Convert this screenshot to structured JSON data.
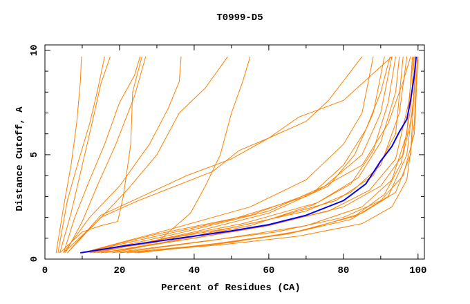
{
  "chart_data": {
    "type": "line",
    "title": "T0999-D5",
    "xlabel": "Percent of Residues (CA)",
    "ylabel": "Distance Cutoff, A",
    "xlim": [
      0,
      101.7
    ],
    "ylim": [
      0,
      10.26
    ],
    "xticks": [
      0,
      20,
      40,
      60,
      80,
      100
    ],
    "yticks": [
      0,
      5,
      10
    ],
    "xminor_step": 10,
    "yminor_step": 1,
    "grid": false,
    "colors": {
      "models": "#ff8000",
      "highlight": "#0000ff",
      "axis": "#000000"
    },
    "highlight_series": [
      [
        9.5,
        0.3
      ],
      [
        20,
        0.6
      ],
      [
        30,
        0.85
      ],
      [
        40,
        1.1
      ],
      [
        50,
        1.35
      ],
      [
        60,
        1.65
      ],
      [
        70,
        2.1
      ],
      [
        80,
        2.8
      ],
      [
        86,
        3.6
      ],
      [
        90,
        4.7
      ],
      [
        93,
        5.4
      ],
      [
        95,
        6.1
      ],
      [
        97,
        6.7
      ],
      [
        98,
        7.6
      ],
      [
        99,
        8.8
      ],
      [
        99.5,
        9.7
      ]
    ],
    "series": [
      [
        [
          3,
          0.3
        ],
        [
          5,
          2.5
        ],
        [
          7,
          4.5
        ],
        [
          8.5,
          6.5
        ],
        [
          9.5,
          8.5
        ],
        [
          9.8,
          9.7
        ]
      ],
      [
        [
          3.5,
          0.3
        ],
        [
          6,
          2.8
        ],
        [
          9,
          4.7
        ],
        [
          12,
          6.5
        ],
        [
          14,
          8
        ],
        [
          16,
          9.7
        ]
      ],
      [
        [
          4,
          0.3
        ],
        [
          7,
          2.2
        ],
        [
          10,
          4.5
        ],
        [
          13,
          6.8
        ],
        [
          15,
          8.4
        ],
        [
          17.5,
          9.7
        ]
      ],
      [
        [
          5,
          0.3
        ],
        [
          8,
          2
        ],
        [
          12,
          3.8
        ],
        [
          16,
          5.5
        ],
        [
          20,
          7.5
        ],
        [
          24,
          8.8
        ],
        [
          25.5,
          9.7
        ]
      ],
      [
        [
          5.5,
          0.3
        ],
        [
          10,
          1.8
        ],
        [
          14,
          3.5
        ],
        [
          19,
          5.5
        ],
        [
          24,
          7.8
        ],
        [
          27,
          9.7
        ]
      ],
      [
        [
          4,
          0.3
        ],
        [
          10,
          1.3
        ],
        [
          15,
          1.6
        ],
        [
          19.5,
          1.8
        ],
        [
          21,
          3
        ],
        [
          23,
          5.5
        ],
        [
          23.5,
          8
        ],
        [
          26,
          9.7
        ]
      ],
      [
        [
          5,
          0.3
        ],
        [
          12,
          2
        ],
        [
          20,
          3.5
        ],
        [
          28,
          5.5
        ],
        [
          33,
          7.2
        ],
        [
          36,
          8.5
        ],
        [
          36.5,
          9.7
        ]
      ],
      [
        [
          5,
          0.3
        ],
        [
          14,
          1.8
        ],
        [
          22,
          3.3
        ],
        [
          30,
          5
        ],
        [
          36,
          7
        ],
        [
          43,
          8.2
        ],
        [
          49,
          9.7
        ]
      ],
      [
        [
          6,
          0.3
        ],
        [
          15,
          2
        ],
        [
          25,
          2.8
        ],
        [
          35,
          3.5
        ],
        [
          45,
          4.2
        ],
        [
          52,
          5.2
        ],
        [
          60,
          5.8
        ],
        [
          70,
          6.6
        ],
        [
          76,
          7.6
        ],
        [
          85,
          9.7
        ]
      ],
      [
        [
          6,
          0.3
        ],
        [
          15,
          2.1
        ],
        [
          26,
          3
        ],
        [
          38,
          4
        ],
        [
          50,
          4.8
        ],
        [
          60,
          5.8
        ],
        [
          68,
          6.8
        ],
        [
          80,
          7.6
        ],
        [
          93,
          9.7
        ]
      ],
      [
        [
          10,
          0.3
        ],
        [
          30,
          0.8
        ],
        [
          39,
          2.2
        ],
        [
          43,
          3.5
        ],
        [
          47,
          5
        ],
        [
          50,
          7
        ],
        [
          53,
          8.5
        ],
        [
          55,
          9.7
        ]
      ],
      [
        [
          10,
          0.3
        ],
        [
          30,
          1.1
        ],
        [
          50,
          1.9
        ],
        [
          70,
          3
        ],
        [
          85,
          4.5
        ],
        [
          92,
          6.5
        ],
        [
          96,
          8.5
        ],
        [
          98,
          9.7
        ]
      ],
      [
        [
          12,
          0.3
        ],
        [
          35,
          1.2
        ],
        [
          60,
          2.3
        ],
        [
          75,
          3.5
        ],
        [
          85,
          5
        ],
        [
          90,
          7
        ],
        [
          93,
          9.7
        ]
      ],
      [
        [
          15,
          0.3
        ],
        [
          40,
          1
        ],
        [
          60,
          1.6
        ],
        [
          80,
          2.5
        ],
        [
          90,
          3.5
        ],
        [
          96,
          5
        ],
        [
          98.5,
          7
        ],
        [
          99.5,
          9.7
        ]
      ],
      [
        [
          18,
          0.3
        ],
        [
          40,
          0.8
        ],
        [
          62,
          1.3
        ],
        [
          80,
          2
        ],
        [
          90,
          2.8
        ],
        [
          96,
          4
        ],
        [
          99,
          6
        ],
        [
          100,
          9.7
        ]
      ],
      [
        [
          20,
          0.3
        ],
        [
          45,
          0.7
        ],
        [
          65,
          1.2
        ],
        [
          82,
          1.9
        ],
        [
          92,
          3
        ],
        [
          97,
          5
        ],
        [
          99,
          8
        ],
        [
          99.5,
          9.7
        ]
      ],
      [
        [
          12,
          0.3
        ],
        [
          30,
          0.9
        ],
        [
          50,
          1.5
        ],
        [
          70,
          2.3
        ],
        [
          82,
          3.2
        ],
        [
          90,
          4.5
        ],
        [
          95,
          7
        ],
        [
          97,
          9.7
        ]
      ],
      [
        [
          15,
          0.3
        ],
        [
          35,
          0.9
        ],
        [
          55,
          1.6
        ],
        [
          72,
          2.6
        ],
        [
          82,
          3.6
        ],
        [
          88,
          5.2
        ],
        [
          92,
          7.5
        ],
        [
          94,
          9.7
        ]
      ],
      [
        [
          10,
          0.3
        ],
        [
          30,
          1.2
        ],
        [
          55,
          2.1
        ],
        [
          72,
          3.2
        ],
        [
          80,
          4.5
        ],
        [
          86,
          6.2
        ],
        [
          90,
          8
        ],
        [
          92.5,
          9.7
        ]
      ],
      [
        [
          14,
          0.3
        ],
        [
          40,
          1.3
        ],
        [
          60,
          2.2
        ],
        [
          76,
          3.5
        ],
        [
          83,
          5
        ],
        [
          88,
          7
        ],
        [
          91,
          9.7
        ]
      ],
      [
        [
          20,
          0.3
        ],
        [
          45,
          0.9
        ],
        [
          70,
          1.6
        ],
        [
          85,
          2.5
        ],
        [
          93,
          3.8
        ],
        [
          97,
          6
        ],
        [
          98.5,
          9.7
        ]
      ],
      [
        [
          25,
          0.3
        ],
        [
          50,
          0.8
        ],
        [
          70,
          1.4
        ],
        [
          85,
          2.2
        ],
        [
          94,
          3.2
        ],
        [
          98,
          5
        ],
        [
          99.5,
          9.7
        ]
      ],
      [
        [
          18,
          0.3
        ],
        [
          40,
          1.1
        ],
        [
          60,
          1.9
        ],
        [
          78,
          2.8
        ],
        [
          88,
          4
        ],
        [
          94,
          6
        ],
        [
          96,
          9.7
        ]
      ],
      [
        [
          10,
          0.3
        ],
        [
          35,
          1.5
        ],
        [
          55,
          2.5
        ],
        [
          70,
          3.8
        ],
        [
          80,
          5.5
        ],
        [
          85,
          7
        ],
        [
          88,
          9.7
        ]
      ],
      [
        [
          22,
          0.3
        ],
        [
          48,
          0.7
        ],
        [
          68,
          1.1
        ],
        [
          85,
          1.7
        ],
        [
          93,
          2.5
        ],
        [
          97,
          3.8
        ],
        [
          99,
          6.5
        ],
        [
          99.8,
          9.7
        ]
      ],
      [
        [
          16,
          0.3
        ],
        [
          38,
          0.95
        ],
        [
          58,
          1.55
        ],
        [
          76,
          2.3
        ],
        [
          87,
          3.3
        ],
        [
          94,
          4.8
        ],
        [
          97.5,
          7.5
        ],
        [
          98.8,
          9.7
        ]
      ],
      [
        [
          24,
          0.3
        ],
        [
          46,
          0.75
        ],
        [
          66,
          1.25
        ],
        [
          83,
          2.05
        ],
        [
          91,
          3.1
        ],
        [
          95.5,
          4.6
        ],
        [
          98,
          7.2
        ],
        [
          99,
          9.7
        ]
      ],
      [
        [
          13,
          0.3
        ],
        [
          33,
          1.0
        ],
        [
          53,
          1.7
        ],
        [
          73,
          2.7
        ],
        [
          84,
          3.9
        ],
        [
          90,
          5.6
        ],
        [
          94,
          8
        ],
        [
          95,
          9.7
        ]
      ]
    ]
  }
}
